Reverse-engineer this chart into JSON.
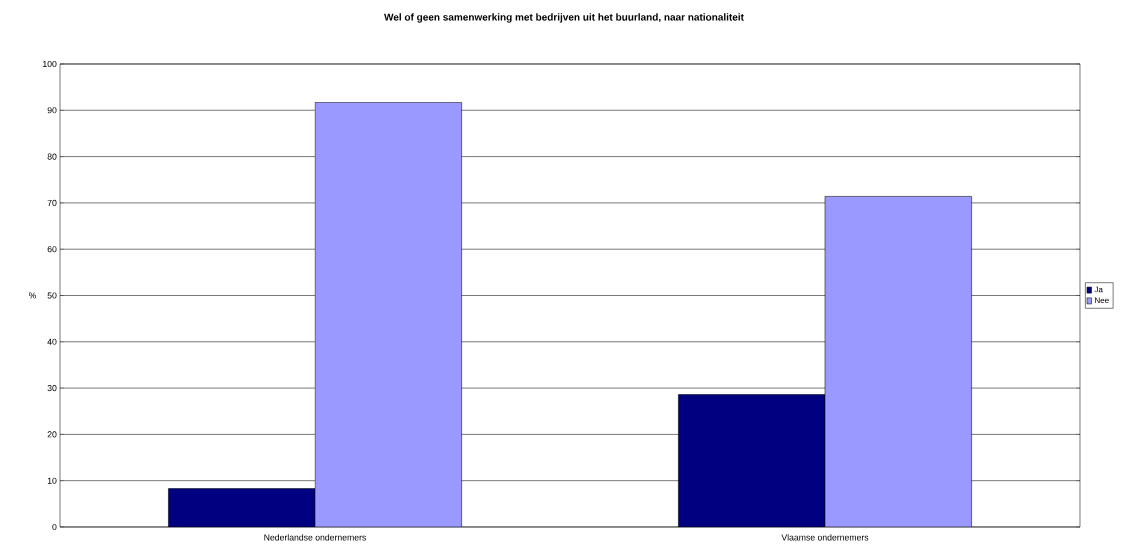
{
  "chart_data": {
    "type": "bar",
    "title": "Wel of geen samenwerking met bedrijven uit het buurland, naar nationaliteit",
    "ylabel": "%",
    "categories": [
      "Nederlandse ondernemers",
      "Vlaamse ondernemers"
    ],
    "series": [
      {
        "name": "Ja",
        "color": "#000080",
        "values": [
          8.3,
          28.6
        ]
      },
      {
        "name": "Nee",
        "color": "#9999ff",
        "values": [
          91.7,
          71.4
        ]
      }
    ],
    "ylim": [
      0,
      100
    ],
    "yticks": [
      0,
      10,
      20,
      30,
      40,
      50,
      60,
      70,
      80,
      90,
      100
    ],
    "grid": "y",
    "legend": "right"
  }
}
